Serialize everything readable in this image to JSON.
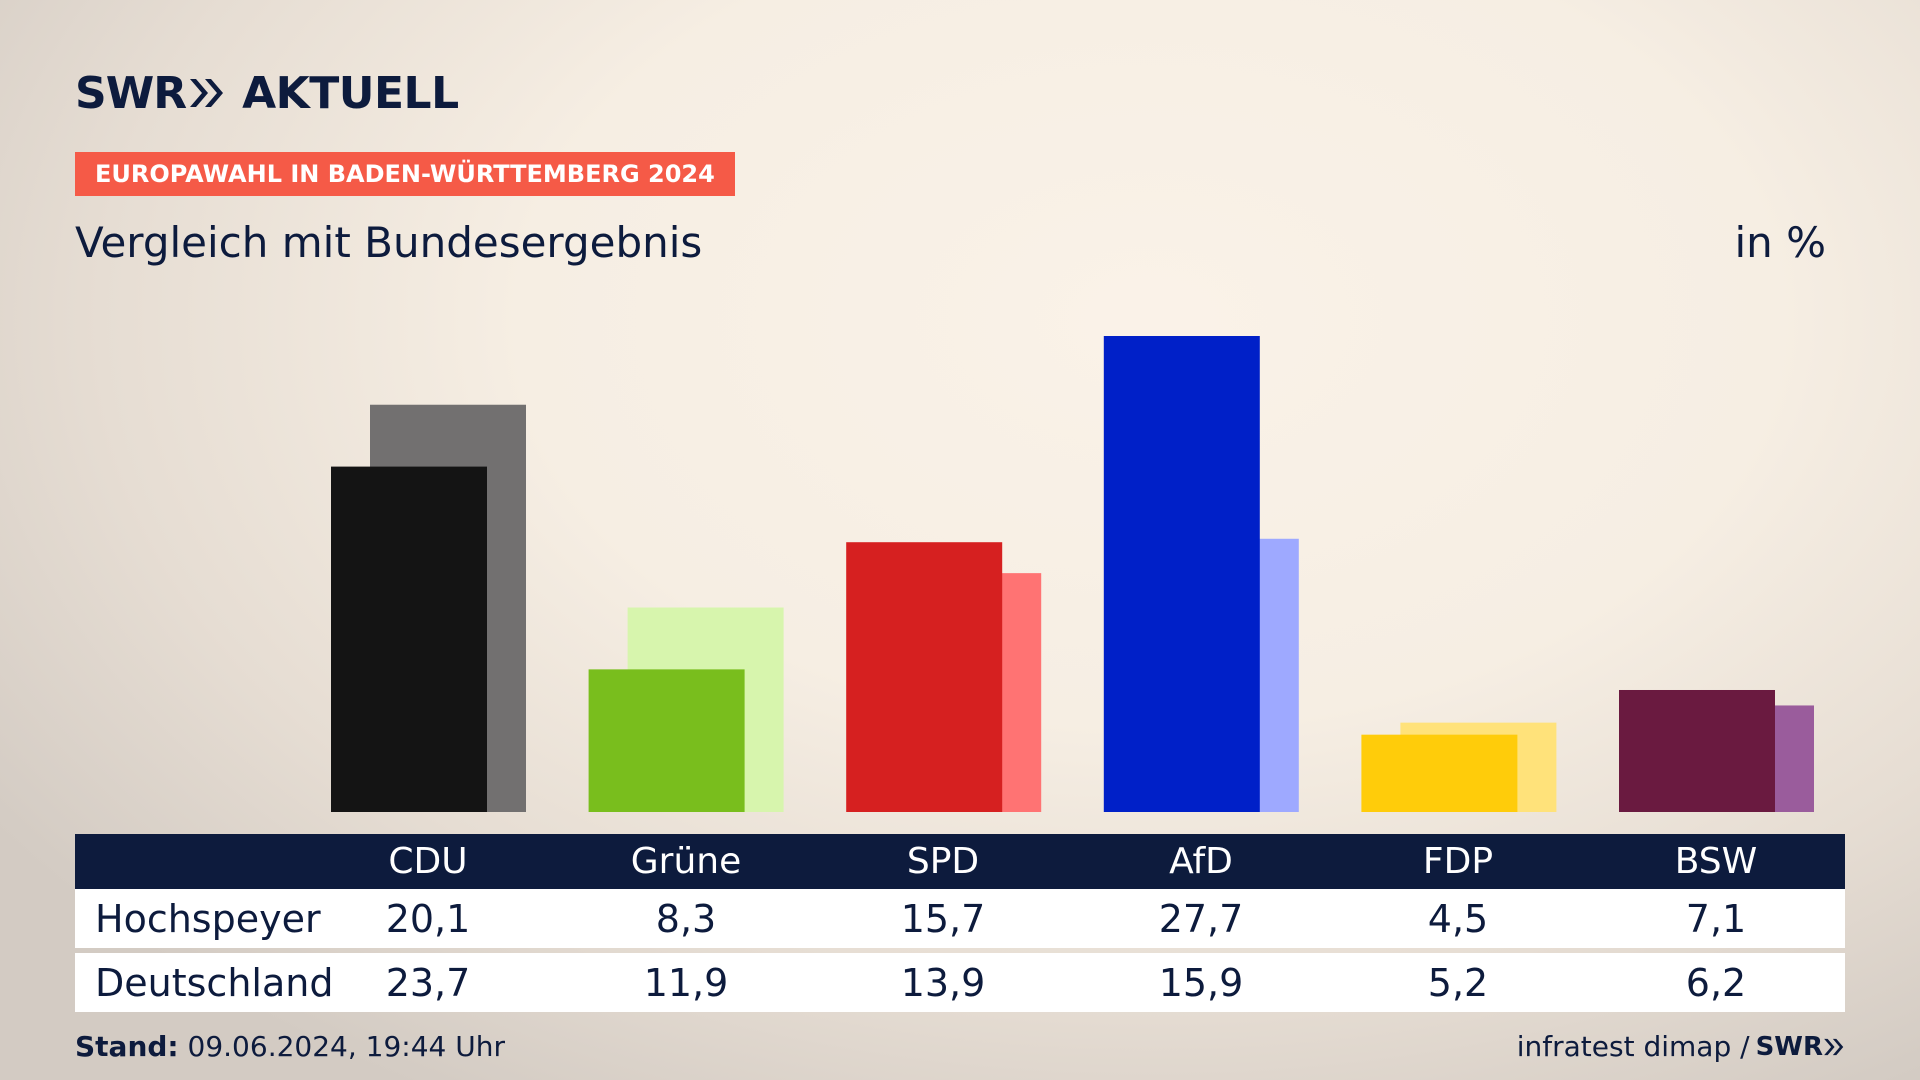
{
  "brand": {
    "swr": "SWR",
    "aktuell": "AKTUELL"
  },
  "badge": "EUROPAWAHL IN BADEN-WÜRTTEMBERG 2024",
  "subtitle": "Vergleich mit Bundesergebnis",
  "unit": "in %",
  "chart_data": {
    "type": "bar",
    "categories": [
      "CDU",
      "Grüne",
      "SPD",
      "AfD",
      "FDP",
      "BSW"
    ],
    "series": [
      {
        "name": "Hochspeyer",
        "values": [
          20.1,
          8.3,
          15.7,
          27.7,
          4.5,
          7.1
        ]
      },
      {
        "name": "Deutschland",
        "values": [
          23.7,
          11.9,
          13.9,
          15.9,
          5.2,
          6.2
        ]
      }
    ],
    "colors": {
      "Hochspeyer": [
        "#141414",
        "#79be1d",
        "#d62020",
        "#0020c8",
        "#ffcc0a",
        "#6a1a40"
      ],
      "Deutschland": [
        "#727070",
        "#d7f5ad",
        "#ff7373",
        "#9ea9ff",
        "#ffe27a",
        "#9a5c9c"
      ]
    },
    "ylim": [
      0,
      27.7
    ],
    "grid": false,
    "legend": "table-below"
  },
  "table": {
    "headers": [
      "CDU",
      "Grüne",
      "SPD",
      "AfD",
      "FDP",
      "BSW"
    ],
    "rows": [
      {
        "label": "Hochspeyer",
        "values": [
          "20,1",
          "8,3",
          "15,7",
          "27,7",
          "4,5",
          "7,1"
        ]
      },
      {
        "label": "Deutschland",
        "values": [
          "23,7",
          "11,9",
          "13,9",
          "15,9",
          "5,2",
          "6,2"
        ]
      }
    ]
  },
  "footer": {
    "stand_label": "Stand:",
    "stand_value": "09.06.2024, 19:44 Uhr",
    "source": "infratest dimap /",
    "source_logo": "SWR"
  }
}
